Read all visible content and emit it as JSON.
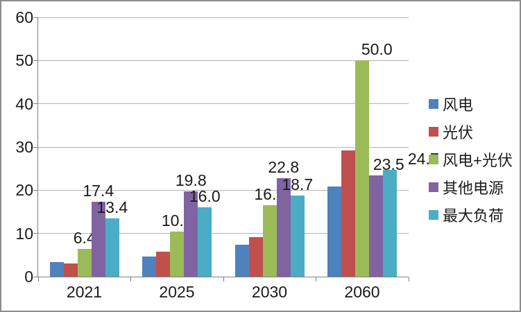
{
  "chart_data": {
    "type": "bar",
    "categories": [
      "2021",
      "2025",
      "2030",
      "2060"
    ],
    "series": [
      {
        "name": "风电",
        "color": "#4F81BD",
        "values": [
          3.3,
          4.7,
          7.4,
          20.8
        ],
        "labels": null
      },
      {
        "name": "光伏",
        "color": "#C0504D",
        "values": [
          3.1,
          5.7,
          9.2,
          29.2
        ],
        "labels": null
      },
      {
        "name": "风电+光伏",
        "color": "#9BBB59",
        "values": [
          6.4,
          10.4,
          16.6,
          50.0
        ],
        "labels": [
          "6.4",
          "10.4",
          "16.6",
          "50.0"
        ]
      },
      {
        "name": "其他电源",
        "color": "#8064A2",
        "values": [
          17.4,
          19.8,
          22.8,
          23.5
        ],
        "labels": [
          "17.4",
          "19.8",
          "22.8",
          "23.5"
        ]
      },
      {
        "name": "最大负荷",
        "color": "#4BACC6",
        "values": [
          13.4,
          16.0,
          18.7,
          24.7
        ],
        "labels": [
          "13.4",
          "16.0",
          "18.7",
          "24.7"
        ]
      }
    ],
    "title": "",
    "xlabel": "",
    "ylabel": "",
    "ylim": [
      0,
      60
    ],
    "yticks": [
      "0",
      "10",
      "20",
      "30",
      "40",
      "50",
      "60"
    ],
    "grid": true,
    "legend_position": "right"
  },
  "colors": {
    "grid": "#b3b3b3",
    "axis": "#7f7f7f",
    "text": "#1a1a1a",
    "background": "#ffffff",
    "border": "#8c8c8c"
  }
}
